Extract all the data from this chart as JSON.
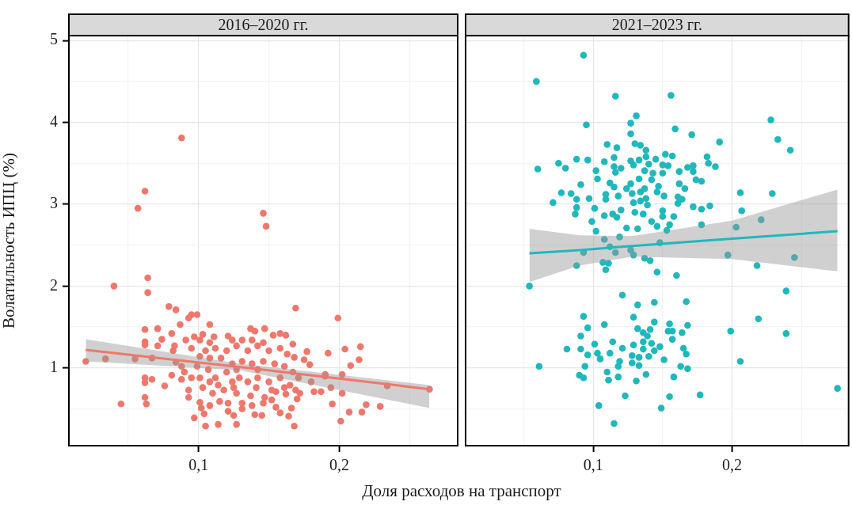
{
  "chart_data": [
    {
      "type": "scatter",
      "title": "2016–2020 гг.",
      "xlabel": "Доля расходов на транспорт",
      "ylabel": "Волатильность ИПЦ (%)",
      "grid": true,
      "xlim": [
        0.008,
        0.284
      ],
      "xticks": [
        {
          "value": 0.05,
          "label": null
        },
        {
          "value": 0.1,
          "label": "0,1"
        },
        {
          "value": 0.15,
          "label": null
        },
        {
          "value": 0.2,
          "label": "0,2"
        },
        {
          "value": 0.25,
          "label": null
        }
      ],
      "ylim": [
        0.05,
        5.06
      ],
      "yticks": [
        {
          "value": 0.5,
          "label": null
        },
        1,
        {
          "value": 1.5,
          "label": null
        },
        2,
        {
          "value": 2.5,
          "label": null
        },
        3,
        {
          "value": 3.5,
          "label": null
        },
        4,
        {
          "value": 4.5,
          "label": null
        },
        5
      ],
      "series": [
        {
          "marker": "circle",
          "color": "#f0776c",
          "x": [
            0.062,
            0.057,
            0.146,
            0.148,
            0.064,
            0.04,
            0.064,
            0.079,
            0.084,
            0.169,
            0.199,
            0.095,
            0.099,
            0.093,
            0.087,
            0.108,
            0.062,
            0.071,
            0.081,
            0.074,
            0.071,
            0.062,
            0.062,
            0.083,
            0.082,
            0.091,
            0.097,
            0.103,
            0.111,
            0.121,
            0.137,
            0.147,
            0.14,
            0.153,
            0.158,
            0.162,
            0.167,
            0.177,
            0.192,
            0.204,
            0.215,
            0.214,
            0.208,
            0.202,
            0.19,
            0.175,
            0.179,
            0.168,
            0.02,
            0.034,
            0.055,
            0.067,
            0.084,
            0.062,
            0.062,
            0.067,
            0.076,
            0.081,
            0.062,
            0.063,
            0.045,
            0.097,
            0.105,
            0.114,
            0.127,
            0.168,
            0.164,
            0.125,
            0.104,
            0.102,
            0.14,
            0.145,
            0.158,
            0.166,
            0.201,
            0.207,
            0.216,
            0.219,
            0.229,
            0.195,
            0.202,
            0.194,
            0.182,
            0.187,
            0.18,
            0.172,
            0.17,
            0.162,
            0.234,
            0.264,
            0.19,
            0.095,
            0.088,
            0.093,
            0.093,
            0.101,
            0.108,
            0.115,
            0.121,
            0.131,
            0.138,
            0.152,
            0.155,
            0.147,
            0.137,
            0.127,
            0.118,
            0.11,
            0.103,
            0.099,
            0.101,
            0.107,
            0.112,
            0.12,
            0.124,
            0.129,
            0.135,
            0.142,
            0.15,
            0.158,
            0.165,
            0.167,
            0.161,
            0.154,
            0.146,
            0.138,
            0.131,
            0.124,
            0.116,
            0.108,
            0.101,
            0.095,
            0.105,
            0.112,
            0.12,
            0.127,
            0.135,
            0.142,
            0.15,
            0.158,
            0.163,
            0.124,
            0.131,
            0.138,
            0.146,
            0.108,
            0.101,
            0.09,
            0.088,
            0.114,
            0.125,
            0.141,
            0.152,
            0.161,
            0.169,
            0.171,
            0.108,
            0.121,
            0.131,
            0.146,
            0.155,
            0.142,
            0.127,
            0.088
          ],
          "values": [
            3.16,
            2.95,
            2.89,
            2.73,
            2.1,
            2.0,
            1.92,
            1.75,
            1.71,
            1.73,
            1.61,
            1.65,
            1.65,
            1.61,
            1.53,
            1.53,
            1.47,
            1.48,
            1.42,
            1.35,
            1.27,
            1.32,
            1.28,
            1.27,
            1.21,
            1.34,
            1.38,
            1.41,
            1.38,
            1.39,
            1.48,
            1.48,
            1.45,
            1.4,
            1.42,
            1.4,
            1.29,
            1.2,
            1.18,
            1.23,
            1.26,
            1.1,
            1.03,
            0.92,
            0.92,
            1.1,
            1.04,
            1.13,
            1.08,
            1.11,
            1.11,
            1.12,
            1.07,
            0.88,
            0.82,
            0.86,
            0.78,
            0.91,
            0.64,
            0.56,
            0.56,
            0.39,
            0.29,
            0.31,
            0.31,
            0.29,
            0.41,
            0.42,
            0.44,
            0.51,
            0.43,
            0.42,
            0.45,
            0.51,
            0.35,
            0.46,
            0.46,
            0.55,
            0.53,
            0.56,
            0.69,
            0.76,
            0.71,
            0.71,
            0.83,
            0.69,
            0.62,
            0.68,
            0.78,
            0.74,
            0.9,
            0.88,
            0.86,
            0.73,
            0.64,
            0.58,
            0.54,
            0.59,
            0.57,
            0.57,
            0.54,
            0.61,
            0.71,
            0.64,
            0.66,
            0.69,
            0.73,
            0.69,
            0.76,
            1.02,
            0.88,
            0.98,
            0.88,
            0.95,
            0.83,
            0.88,
            0.83,
            0.88,
            0.83,
            0.88,
            0.79,
            0.95,
            1.02,
            1.05,
            1.08,
            1.05,
            1.08,
            1.05,
            1.12,
            1.12,
            1.14,
            1.24,
            1.21,
            1.24,
            1.21,
            1.27,
            1.21,
            1.27,
            1.21,
            1.24,
            1.17,
            1.34,
            1.34,
            1.34,
            1.31,
            1.31,
            1.34,
            0.95,
            1.02,
            0.79,
            0.76,
            0.76,
            0.73,
            0.76,
            0.73,
            0.88,
            0.83,
            0.47,
            0.5,
            0.57,
            0.52,
            0.98,
            0.98,
            3.81
          ]
        },
        {
          "type": "line",
          "marker": "none",
          "color": "#f0776c",
          "x": [
            0.02,
            0.13,
            0.264
          ],
          "values": [
            1.22,
            1.01,
            0.74
          ],
          "lower": [
            1.08,
            0.97,
            0.51
          ],
          "upper": [
            1.35,
            1.05,
            0.79
          ]
        }
      ]
    },
    {
      "type": "scatter",
      "title": "2021–2023 гг.",
      "grid": true,
      "tick_labels": "x",
      "xlim": [
        0.008,
        0.284
      ],
      "xticks": [
        {
          "value": 0.05,
          "label": null
        },
        {
          "value": 0.1,
          "label": "0,1"
        },
        {
          "value": 0.15,
          "label": null
        },
        {
          "value": 0.2,
          "label": "0,2"
        },
        {
          "value": 0.25,
          "label": null
        }
      ],
      "ylim": [
        0.05,
        5.06
      ],
      "yticks": [
        {
          "value": 0.5,
          "label": null
        },
        1,
        {
          "value": 1.5,
          "label": null
        },
        2,
        {
          "value": 2.5,
          "label": null
        },
        3,
        {
          "value": 3.5,
          "label": null
        },
        4,
        {
          "value": 4.5,
          "label": null
        },
        5
      ],
      "series": [
        {
          "marker": "circle",
          "color": "#1fb8bd",
          "x": [
            0.093,
            0.096,
            0.108,
            0.121,
            0.132,
            0.144,
            0.167,
            0.129,
            0.144,
            0.155,
            0.168,
            0.091,
            0.081,
            0.091,
            0.096,
            0.101,
            0.103,
            0.105,
            0.094,
            0.09,
            0.093,
            0.11,
            0.111,
            0.118,
            0.114,
            0.112,
            0.121,
            0.119,
            0.118,
            0.128,
            0.129,
            0.132,
            0.136,
            0.136,
            0.136,
            0.133,
            0.133,
            0.128,
            0.131,
            0.138,
            0.139,
            0.141,
            0.142,
            0.144,
            0.14,
            0.148,
            0.151,
            0.154,
            0.157,
            0.157,
            0.164,
            0.165,
            0.167,
            0.163,
            0.168,
            0.158,
            0.155,
            0.123,
            0.149,
            0.104,
            0.115,
            0.177,
            0.061,
            0.054,
            0.199,
            0.206,
            0.219,
            0.239,
            0.239,
            0.276,
            0.218,
            0.109,
            0.146,
            0.16,
            0.088,
            0.093,
            0.059,
            0.116,
            0.156,
            0.095,
            0.131,
            0.127,
            0.159,
            0.127,
            0.171,
            0.228,
            0.233,
            0.242,
            0.191,
            0.06,
            0.11,
            0.117,
            0.13,
            0.134,
            0.138,
            0.075,
            0.08,
            0.088,
            0.096,
            0.108,
            0.115,
            0.12,
            0.115,
            0.127,
            0.129,
            0.133,
            0.138,
            0.145,
            0.152,
            0.157,
            0.14,
            0.15,
            0.154,
            0.168,
            0.172,
            0.182,
            0.183,
            0.188,
            0.102,
            0.103,
            0.116,
            0.137,
            0.143,
            0.15,
            0.162,
            0.172,
            0.174,
            0.178,
            0.091,
            0.112,
            0.115,
            0.127,
            0.133,
            0.142,
            0.147,
            0.162,
            0.166,
            0.124,
            0.137,
            0.077,
            0.084,
            0.088,
            0.097,
            0.109,
            0.109,
            0.118,
            0.128,
            0.134,
            0.138,
            0.146,
            0.151,
            0.161,
            0.164,
            0.071,
            0.088,
            0.087,
            0.101,
            0.129,
            0.134,
            0.139,
            0.161,
            0.172,
            0.178,
            0.184,
            0.206,
            0.229,
            0.207,
            0.108,
            0.114,
            0.117,
            0.12,
            0.13,
            0.136,
            0.15,
            0.15,
            0.158,
            0.099,
            0.102,
            0.124,
            0.132,
            0.142,
            0.146,
            0.153,
            0.155,
            0.178,
            0.203,
            0.221,
            0.108,
            0.119,
            0.112,
            0.116,
            0.127,
            0.129,
            0.148,
            0.093,
            0.197,
            0.245,
            0.137,
            0.141,
            0.107,
            0.111
          ],
          "values": [
            1.63,
            1.49,
            1.53,
            1.89,
            1.77,
            1.8,
            1.81,
            1.62,
            1.56,
            1.54,
            1.52,
            1.39,
            1.23,
            1.23,
            1.16,
            1.29,
            1.18,
            1.11,
            1.02,
            0.91,
            0.88,
            0.95,
            0.85,
            0.89,
            1.32,
            1.18,
            1.24,
            1.08,
            1.02,
            1.15,
            1.28,
            1.48,
            1.43,
            1.32,
            1.23,
            1.13,
            1.03,
            1.06,
            0.84,
            0.92,
            1.39,
            1.47,
            1.3,
            1.21,
            1.14,
            1.26,
            1.1,
            1.45,
            1.45,
            1.35,
            1.43,
            1.24,
            1.17,
            1.02,
            0.99,
            0.89,
            0.65,
            0.66,
            0.51,
            0.54,
            0.32,
            0.67,
            1.02,
            2.0,
            1.45,
            1.08,
            1.6,
            1.94,
            1.42,
            0.75,
            2.25,
            2.2,
            2.17,
            2.13,
            2.25,
            4.82,
            4.5,
            4.32,
            4.33,
            3.97,
            4.08,
            3.99,
            3.92,
            3.86,
            3.85,
            4.03,
            3.79,
            3.66,
            3.76,
            3.43,
            3.73,
            3.69,
            3.74,
            3.72,
            3.66,
            3.5,
            3.44,
            3.55,
            3.54,
            3.52,
            3.57,
            3.44,
            3.46,
            3.53,
            3.48,
            3.54,
            3.58,
            3.55,
            3.61,
            3.59,
            3.49,
            3.48,
            3.47,
            3.45,
            3.47,
            3.58,
            3.5,
            3.46,
            3.41,
            3.31,
            3.39,
            3.41,
            3.38,
            3.38,
            3.4,
            3.4,
            3.3,
            3.28,
            3.24,
            3.26,
            3.21,
            3.25,
            3.31,
            3.3,
            3.22,
            3.25,
            3.19,
            3.19,
            3.19,
            3.14,
            3.13,
            3.06,
            3.07,
            3.12,
            3.06,
            3.1,
            3.13,
            3.15,
            3.07,
            3.15,
            3.1,
            3.09,
            3.06,
            3.02,
            2.96,
            2.88,
            2.95,
            3.02,
            3.04,
            2.99,
            3.01,
            2.97,
            2.94,
            2.98,
            3.14,
            3.13,
            2.92,
            2.86,
            2.88,
            2.84,
            2.93,
            2.9,
            2.88,
            2.92,
            2.85,
            2.85,
            2.79,
            2.67,
            2.71,
            2.7,
            2.79,
            2.73,
            2.68,
            2.75,
            2.75,
            2.72,
            2.81,
            2.57,
            2.6,
            2.48,
            2.41,
            2.44,
            2.38,
            2.53,
            2.41,
            2.38,
            2.35,
            2.34,
            2.31,
            2.29,
            2.28
          ]
        },
        {
          "type": "line",
          "marker": "none",
          "color": "#1fb8bd",
          "x": [
            0.054,
            0.09,
            0.128,
            0.2,
            0.276
          ],
          "values": [
            2.4,
            2.44,
            2.49,
            2.58,
            2.67
          ],
          "lower": [
            2.05,
            2.25,
            2.36,
            2.33,
            2.18
          ],
          "upper": [
            2.7,
            2.62,
            2.61,
            2.8,
            3.18
          ]
        }
      ]
    }
  ]
}
